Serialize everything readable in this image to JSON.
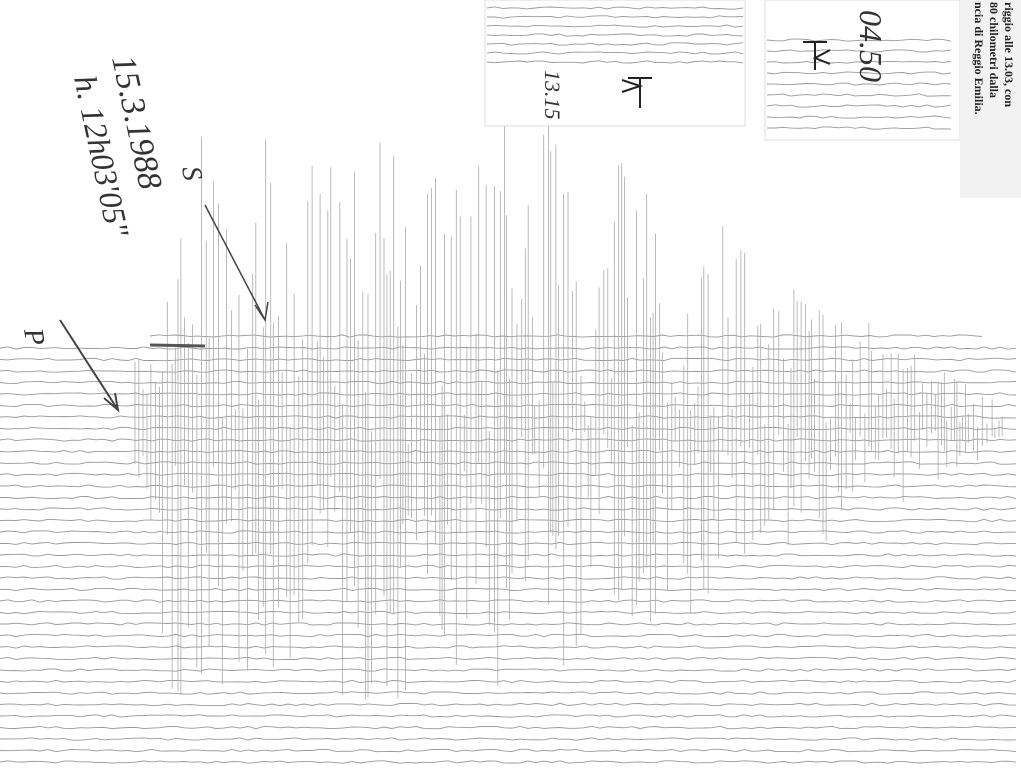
{
  "annotations": {
    "date": "15.3.1988",
    "time": "h. 12h03'05\"",
    "s_label": "S",
    "p_label": "P"
  },
  "clippings": {
    "left": "13.15",
    "right": "04.50"
  },
  "newspaper": {
    "lines": [
      "riggio alle 13.03, con",
      "80 chilometri dalla",
      "ncia di Reggio Emilia."
    ]
  }
}
